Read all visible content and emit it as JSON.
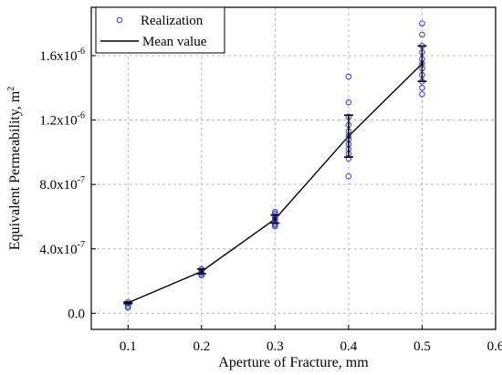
{
  "chart_data": {
    "type": "scatter",
    "xlabel": "Aperture of Fracture, mm",
    "ylabel_text": "Equivalent Permeability, m",
    "ylabel_sup": "2",
    "xlim": [
      0.05,
      0.6
    ],
    "ylim": [
      -1e-07,
      1.9e-06
    ],
    "grid": true,
    "legend_position": "top-left",
    "x_ticks": [
      {
        "value": 0.1,
        "label": "0.1"
      },
      {
        "value": 0.2,
        "label": "0.2"
      },
      {
        "value": 0.3,
        "label": "0.3"
      },
      {
        "value": 0.4,
        "label": "0.4"
      },
      {
        "value": 0.5,
        "label": "0.5"
      },
      {
        "value": 0.6,
        "label": "0.6"
      }
    ],
    "y_ticks": [
      {
        "value": 0.0,
        "base": "0.0",
        "exp": ""
      },
      {
        "value": 4e-07,
        "base": "4.0x10",
        "exp": "-7"
      },
      {
        "value": 8e-07,
        "base": "8.0x10",
        "exp": "-7"
      },
      {
        "value": 1.2e-06,
        "base": "1.2x10",
        "exp": "-6"
      },
      {
        "value": 1.6e-06,
        "base": "1.6x10",
        "exp": "-6"
      }
    ],
    "series": [
      {
        "name": "Realization",
        "kind": "scatter",
        "color": "#3b3bd6",
        "points": [
          {
            "x": 0.1,
            "y": 3.5e-08
          },
          {
            "x": 0.1,
            "y": 4.5e-08
          },
          {
            "x": 0.1,
            "y": 6e-08
          },
          {
            "x": 0.1,
            "y": 7e-08
          },
          {
            "x": 0.2,
            "y": 2.35e-07
          },
          {
            "x": 0.2,
            "y": 2.45e-07
          },
          {
            "x": 0.2,
            "y": 2.55e-07
          },
          {
            "x": 0.2,
            "y": 2.65e-07
          },
          {
            "x": 0.2,
            "y": 2.75e-07
          },
          {
            "x": 0.3,
            "y": 5.4e-07
          },
          {
            "x": 0.3,
            "y": 5.5e-07
          },
          {
            "x": 0.3,
            "y": 5.6e-07
          },
          {
            "x": 0.3,
            "y": 5.8e-07
          },
          {
            "x": 0.3,
            "y": 5.9e-07
          },
          {
            "x": 0.3,
            "y": 6e-07
          },
          {
            "x": 0.3,
            "y": 6.1e-07
          },
          {
            "x": 0.3,
            "y": 6.2e-07
          },
          {
            "x": 0.3,
            "y": 6.3e-07
          },
          {
            "x": 0.4,
            "y": 8.5e-07
          },
          {
            "x": 0.4,
            "y": 9.6e-07
          },
          {
            "x": 0.4,
            "y": 9.9e-07
          },
          {
            "x": 0.4,
            "y": 1.02e-06
          },
          {
            "x": 0.4,
            "y": 1.05e-06
          },
          {
            "x": 0.4,
            "y": 1.08e-06
          },
          {
            "x": 0.4,
            "y": 1.1e-06
          },
          {
            "x": 0.4,
            "y": 1.13e-06
          },
          {
            "x": 0.4,
            "y": 1.17e-06
          },
          {
            "x": 0.4,
            "y": 1.22e-06
          },
          {
            "x": 0.4,
            "y": 1.31e-06
          },
          {
            "x": 0.4,
            "y": 1.47e-06
          },
          {
            "x": 0.5,
            "y": 1.36e-06
          },
          {
            "x": 0.5,
            "y": 1.4e-06
          },
          {
            "x": 0.5,
            "y": 1.44e-06
          },
          {
            "x": 0.5,
            "y": 1.48e-06
          },
          {
            "x": 0.5,
            "y": 1.52e-06
          },
          {
            "x": 0.5,
            "y": 1.55e-06
          },
          {
            "x": 0.5,
            "y": 1.58e-06
          },
          {
            "x": 0.5,
            "y": 1.62e-06
          },
          {
            "x": 0.5,
            "y": 1.66e-06
          },
          {
            "x": 0.5,
            "y": 1.73e-06
          },
          {
            "x": 0.5,
            "y": 1.8e-06
          }
        ]
      },
      {
        "name": "Mean value",
        "kind": "line",
        "color": "#000000",
        "points": [
          {
            "x": 0.1,
            "y": 6.5e-08,
            "err": 5e-09
          },
          {
            "x": 0.2,
            "y": 2.6e-07,
            "err": 1.5e-08
          },
          {
            "x": 0.3,
            "y": 5.85e-07,
            "err": 2.5e-08
          },
          {
            "x": 0.4,
            "y": 1.1e-06,
            "err": 1.3e-07
          },
          {
            "x": 0.5,
            "y": 1.55e-06,
            "err": 1.1e-07
          }
        ]
      }
    ]
  }
}
